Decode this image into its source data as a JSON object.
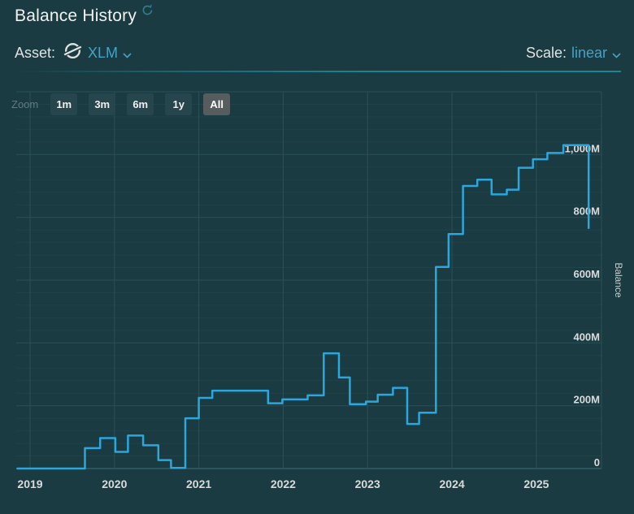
{
  "header": {
    "title": "Balance History",
    "asset_label": "Asset:",
    "asset_value": "XLM",
    "scale_label": "Scale:",
    "scale_value": "linear"
  },
  "range_selector": {
    "label": "Zoom",
    "buttons": [
      {
        "label": "1m",
        "selected": false
      },
      {
        "label": "3m",
        "selected": false
      },
      {
        "label": "6m",
        "selected": false
      },
      {
        "label": "1y",
        "selected": false
      },
      {
        "label": "All",
        "selected": true
      }
    ]
  },
  "chart_data": {
    "type": "line",
    "step": "left",
    "title": "Balance History",
    "xlabel": "",
    "ylabel": "Balance",
    "unit": "millions of XLM",
    "xlim": [
      2018.836,
      2025.772
    ],
    "ylim": [
      0,
      1200
    ],
    "x_ticks": [
      2019,
      2020,
      2021,
      2022,
      2023,
      2024,
      2025
    ],
    "y_ticks": [
      {
        "value": 0,
        "label": "0"
      },
      {
        "value": 200,
        "label": "200M"
      },
      {
        "value": 400,
        "label": "400M"
      },
      {
        "value": 600,
        "label": "600M"
      },
      {
        "value": 800,
        "label": "800M"
      },
      {
        "value": 1000,
        "label": "1,000M"
      }
    ],
    "grid": {
      "minor_step": 40,
      "major_step": 200,
      "show": true
    },
    "legend": "none",
    "series": [
      {
        "name": "Balance",
        "color": "#2ba7dd",
        "points": [
          [
            2018.85,
            0
          ],
          [
            2019.65,
            65
          ],
          [
            2019.83,
            97
          ],
          [
            2020.01,
            53
          ],
          [
            2020.16,
            105
          ],
          [
            2020.34,
            74
          ],
          [
            2020.52,
            27
          ],
          [
            2020.67,
            2
          ],
          [
            2020.84,
            160
          ],
          [
            2021.0,
            225
          ],
          [
            2021.16,
            248
          ],
          [
            2021.82,
            208
          ],
          [
            2021.99,
            220
          ],
          [
            2022.29,
            233
          ],
          [
            2022.48,
            367
          ],
          [
            2022.66,
            290
          ],
          [
            2022.79,
            205
          ],
          [
            2022.98,
            213
          ],
          [
            2023.12,
            235
          ],
          [
            2023.3,
            257
          ],
          [
            2023.47,
            142
          ],
          [
            2023.61,
            178
          ],
          [
            2023.81,
            642
          ],
          [
            2023.96,
            747
          ],
          [
            2024.13,
            900
          ],
          [
            2024.3,
            920
          ],
          [
            2024.47,
            873
          ],
          [
            2024.65,
            888
          ],
          [
            2024.79,
            958
          ],
          [
            2024.96,
            985
          ],
          [
            2025.13,
            1005
          ],
          [
            2025.32,
            1030
          ],
          [
            2025.62,
            766
          ]
        ]
      }
    ]
  },
  "colors": {
    "background": "#1b3b42",
    "accent": "#45a2c4",
    "line": "#2ba7dd",
    "divider": "#1b8592",
    "button_bg": "#27454d",
    "button_selected_bg": "#575d5e",
    "grid_major": "#2b5058",
    "grid_minor": "#224249",
    "grid_zero": "#3c6d76",
    "axis_text": "#d7dbdb"
  }
}
